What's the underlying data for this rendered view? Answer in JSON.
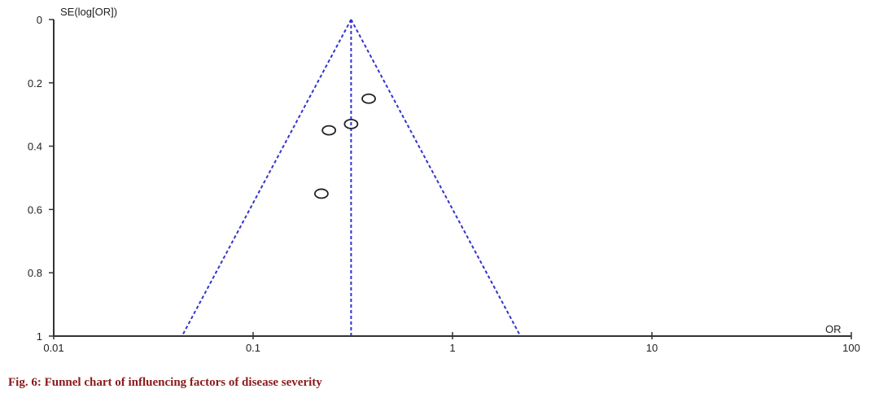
{
  "caption": "Fig. 6: Funnel chart of influencing factors of disease severity",
  "chart_data": {
    "type": "scatter",
    "subtype": "funnel",
    "title": "",
    "xlabel": "OR",
    "ylabel": "SE(log[OR])",
    "x_scale": "log",
    "xlim": [
      0.01,
      100
    ],
    "ylim": [
      0,
      1
    ],
    "y_inverted": true,
    "x_ticks": [
      "0.01",
      "0.1",
      "1",
      "10",
      "100"
    ],
    "y_ticks": [
      "0",
      "0.2",
      "0.4",
      "0.6",
      "0.8",
      "1"
    ],
    "pooled_or": 0.31,
    "funnel_bounds_at_se_1": [
      0.044,
      2.19
    ],
    "points": [
      {
        "or": 0.38,
        "se": 0.25
      },
      {
        "or": 0.31,
        "se": 0.33
      },
      {
        "or": 0.24,
        "se": 0.35
      },
      {
        "or": 0.22,
        "se": 0.55
      }
    ],
    "grid": false,
    "colors": {
      "funnel": "#3333cc",
      "points": "#222222",
      "axes": "#333333"
    }
  }
}
